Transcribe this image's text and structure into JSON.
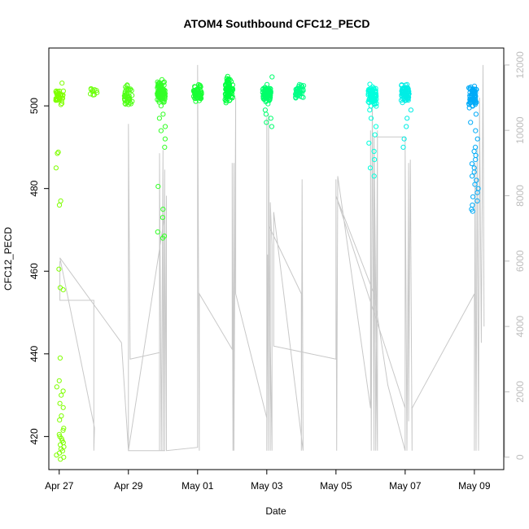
{
  "chart_data": {
    "type": "scatter",
    "title": "ATOM4 Southbound CFC12_PECD",
    "xlabel": "Date",
    "ylabel": "CFC12_PECD",
    "x_ticks": [
      "Apr 27",
      "Apr 29",
      "May 01",
      "May 03",
      "May 05",
      "May 07",
      "May 09"
    ],
    "x_range_days": [
      -0.3,
      12.85
    ],
    "ylim": [
      412,
      514
    ],
    "y_ticks": [
      420,
      440,
      460,
      480,
      500
    ],
    "y2_ticks": [
      0,
      2000,
      4000,
      6000,
      8000,
      10000,
      12000
    ],
    "y2lim": [
      -380,
      12520
    ],
    "grid": false,
    "legend": "none",
    "colors": {
      "axis": "#000000",
      "secondary_axis": "#bdbdbd",
      "altitude_line": "#c8c8c8",
      "point_gradient": [
        "#7fff00",
        "#00ff40",
        "#00ffe0",
        "#0090ff"
      ]
    },
    "point_clusters": [
      {
        "day": 0.02,
        "center": 502.5,
        "count": 38,
        "spread": 2.0,
        "c": 0.0
      },
      {
        "day": 0.02,
        "values": [
          488.5,
          488.8,
          485,
          477,
          476,
          460.5,
          456,
          455.5,
          439,
          433.5,
          432,
          431,
          430,
          428,
          427,
          425,
          424,
          422,
          421.5,
          420.5,
          420,
          419.5,
          419,
          418.5,
          418,
          417.5,
          417,
          416.5,
          416,
          415.5,
          415,
          414.5
        ],
        "c": 0.0
      },
      {
        "day": 1.0,
        "center": 503.5,
        "count": 10,
        "spread": 1.2,
        "c": 0.05
      },
      {
        "day": 2.0,
        "center": 502.5,
        "count": 40,
        "spread": 1.8,
        "c": 0.12
      },
      {
        "day": 2.95,
        "center": 503.5,
        "count": 90,
        "spread": 2.0,
        "c": 0.2
      },
      {
        "day": 2.95,
        "values": [
          500,
          498,
          497,
          495,
          494,
          492,
          490,
          480.5,
          475,
          473,
          469.5,
          468.5,
          468
        ],
        "c": 0.2
      },
      {
        "day": 4.0,
        "center": 503.0,
        "count": 55,
        "spread": 1.6,
        "c": 0.27
      },
      {
        "day": 4.9,
        "center": 504.0,
        "count": 80,
        "spread": 2.2,
        "c": 0.33
      },
      {
        "day": 6.0,
        "center": 503.0,
        "count": 70,
        "spread": 1.8,
        "c": 0.42
      },
      {
        "day": 6.05,
        "values": [
          507,
          501,
          499,
          498,
          497,
          496,
          495
        ],
        "c": 0.43
      },
      {
        "day": 6.95,
        "center": 503.5,
        "count": 40,
        "spread": 1.4,
        "c": 0.48
      },
      {
        "day": 9.05,
        "center": 502.5,
        "count": 75,
        "spread": 2.0,
        "c": 0.66
      },
      {
        "day": 9.05,
        "values": [
          499,
          497,
          495,
          493,
          491,
          489,
          487,
          485,
          483
        ],
        "c": 0.66
      },
      {
        "day": 10.0,
        "center": 503.0,
        "count": 70,
        "spread": 1.8,
        "c": 0.72
      },
      {
        "day": 10.05,
        "values": [
          499,
          497,
          495,
          492,
          490
        ],
        "c": 0.72
      },
      {
        "day": 11.95,
        "center": 502.5,
        "count": 60,
        "spread": 2.0,
        "c": 0.92
      },
      {
        "day": 12.0,
        "values": [
          500,
          498,
          496,
          494,
          492,
          490,
          489,
          488,
          487,
          486,
          485,
          484,
          483,
          482,
          481,
          480,
          479,
          478,
          477,
          476,
          475,
          474.5
        ],
        "c": 0.92
      }
    ],
    "altitude_path": [
      [
        0.02,
        6000
      ],
      [
        0.02,
        5000
      ],
      [
        0.02,
        4800
      ],
      [
        1.0,
        4800
      ],
      [
        1.0,
        200
      ],
      [
        1.02,
        900
      ],
      [
        0.02,
        6100
      ],
      [
        1.8,
        3500
      ],
      [
        2.0,
        200
      ],
      [
        2.0,
        10200
      ],
      [
        2.05,
        3000
      ],
      [
        2.9,
        3200
      ],
      [
        2.9,
        200
      ],
      [
        2.9,
        9300
      ],
      [
        2.95,
        200
      ],
      [
        3.0,
        9400
      ],
      [
        3.0,
        200
      ],
      [
        3.05,
        8800
      ],
      [
        3.05,
        200
      ],
      [
        3.0,
        200
      ],
      [
        2.0,
        200
      ],
      [
        3.05,
        7400
      ],
      [
        3.05,
        200
      ],
      [
        3.1,
        8000
      ],
      [
        3.1,
        200
      ],
      [
        4.0,
        300
      ],
      [
        4.0,
        12000
      ],
      [
        4.05,
        200
      ],
      [
        4.05,
        5000
      ],
      [
        5.0,
        3300
      ],
      [
        5.0,
        9000
      ],
      [
        5.02,
        200
      ],
      [
        5.05,
        9000
      ],
      [
        5.05,
        200
      ],
      [
        5.1,
        11000
      ],
      [
        5.1,
        5000
      ],
      [
        6.0,
        1200
      ],
      [
        6.0,
        10400
      ],
      [
        6.0,
        200
      ],
      [
        6.02,
        6200
      ],
      [
        6.05,
        200
      ],
      [
        6.05,
        10500
      ],
      [
        6.1,
        200
      ],
      [
        6.1,
        7800
      ],
      [
        6.15,
        6500
      ],
      [
        6.15,
        200
      ],
      [
        6.05,
        7100
      ],
      [
        7.0,
        5000
      ],
      [
        7.0,
        200
      ],
      [
        7.02,
        8500
      ],
      [
        7.05,
        200
      ],
      [
        6.2,
        7500
      ],
      [
        6.2,
        3400
      ],
      [
        8.0,
        3000
      ],
      [
        8.0,
        8500
      ],
      [
        8.02,
        200
      ],
      [
        8.05,
        8600
      ],
      [
        9.0,
        1500
      ],
      [
        9.0,
        10000
      ],
      [
        9.02,
        200
      ],
      [
        9.05,
        11000
      ],
      [
        9.1,
        200
      ],
      [
        9.1,
        9800
      ],
      [
        9.15,
        200
      ],
      [
        9.2,
        10000
      ],
      [
        9.2,
        200
      ],
      [
        9.1,
        9800
      ],
      [
        10.0,
        9800
      ],
      [
        10.0,
        1500
      ],
      [
        8.0,
        8000
      ],
      [
        9.1,
        5000
      ],
      [
        9.5,
        2200
      ],
      [
        10.0,
        200
      ],
      [
        10.0,
        9500
      ],
      [
        10.05,
        200
      ],
      [
        10.1,
        9000
      ],
      [
        10.1,
        1100
      ],
      [
        10.15,
        9100
      ],
      [
        10.2,
        200
      ],
      [
        10.2,
        1500
      ],
      [
        12.0,
        5000
      ],
      [
        12.0,
        200
      ],
      [
        12.02,
        9000
      ],
      [
        12.05,
        200
      ],
      [
        12.08,
        9500
      ],
      [
        12.12,
        200
      ],
      [
        12.15,
        11000
      ],
      [
        12.2,
        3500
      ],
      [
        12.25,
        12000
      ],
      [
        12.28,
        4000
      ]
    ]
  }
}
